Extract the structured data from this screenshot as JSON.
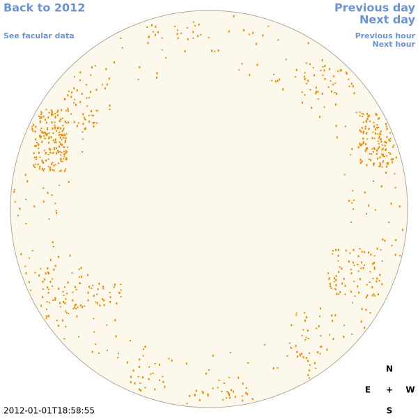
{
  "header": {
    "back_link": "Back to 2012",
    "facular_link": "See facular data",
    "previous_day": "Previous day",
    "next_day": "Next day",
    "previous_hour": "Previous hour",
    "next_hour": "Next hour"
  },
  "compass": {
    "north": "N",
    "east": "E",
    "center": "+",
    "west": "W",
    "south": "S"
  },
  "timestamp": "2012-01-01T18:58:55"
}
